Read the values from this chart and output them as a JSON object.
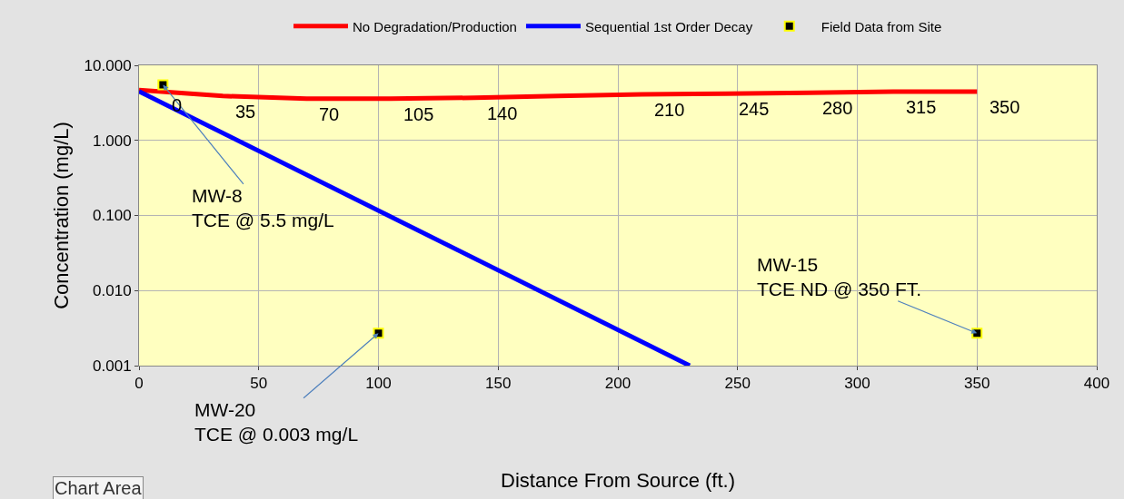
{
  "chart_data": {
    "type": "line",
    "xlabel": "Distance From Source (ft.)",
    "ylabel": "Concentration (mg/L)",
    "log": "y",
    "xlim": [
      0,
      400
    ],
    "xticks": [
      0,
      50,
      100,
      150,
      200,
      250,
      300,
      350,
      400
    ],
    "ylim": [
      0.001,
      10
    ],
    "yticks": [
      {
        "value": 0.001,
        "label": "0.001"
      },
      {
        "value": 0.01,
        "label": "0.010"
      },
      {
        "value": 0.1,
        "label": "0.100"
      },
      {
        "value": 1,
        "label": "1.000"
      },
      {
        "value": 10,
        "label": "10.000"
      }
    ],
    "grid": true,
    "legend": "top",
    "series": [
      {
        "name": "No Degradation/Production",
        "color": "#ff0000",
        "marker": "none",
        "x": [
          0,
          35,
          70,
          105,
          140,
          175,
          210,
          245,
          280,
          315,
          350
        ],
        "values": [
          4.7,
          3.9,
          3.6,
          3.6,
          3.7,
          3.9,
          4.1,
          4.2,
          4.3,
          4.45,
          4.45
        ]
      },
      {
        "name": "Sequential 1st Order Decay",
        "color": "#0000ff",
        "marker": "none",
        "x": [
          0,
          230
        ],
        "values": [
          4.5,
          0.001
        ]
      },
      {
        "name": "Field Data from Site",
        "type": "scatter",
        "color": "#000000",
        "marker": "square",
        "x": [
          10,
          100,
          350
        ],
        "values": [
          5.5,
          0.0027,
          0.0027
        ]
      }
    ],
    "annotations": [
      {
        "text": "MW-8\nTCE @ 5.5 mg/L",
        "x": 10,
        "y": 5.5
      },
      {
        "text": "MW-20\nTCE @ 0.003 mg/L",
        "x": 100,
        "y": 0.0027
      },
      {
        "text": "MW-15\nTCE ND @ 350 FT.",
        "x": 350,
        "y": 0.0027
      },
      {
        "text": "0",
        "x": 0,
        "y": 4.7
      },
      {
        "text": "35",
        "x": 35,
        "y": 3.9
      },
      {
        "text": "70",
        "x": 70,
        "y": 3.6
      },
      {
        "text": "105",
        "x": 105,
        "y": 3.6
      },
      {
        "text": "140",
        "x": 140,
        "y": 3.7
      },
      {
        "text": "210",
        "x": 210,
        "y": 4.1
      },
      {
        "text": "245",
        "x": 245,
        "y": 4.2
      },
      {
        "text": "280",
        "x": 280,
        "y": 4.3
      },
      {
        "text": "315",
        "x": 315,
        "y": 4.45
      },
      {
        "text": "350",
        "x": 350,
        "y": 4.45
      },
      "Chart Area"
    ]
  }
}
